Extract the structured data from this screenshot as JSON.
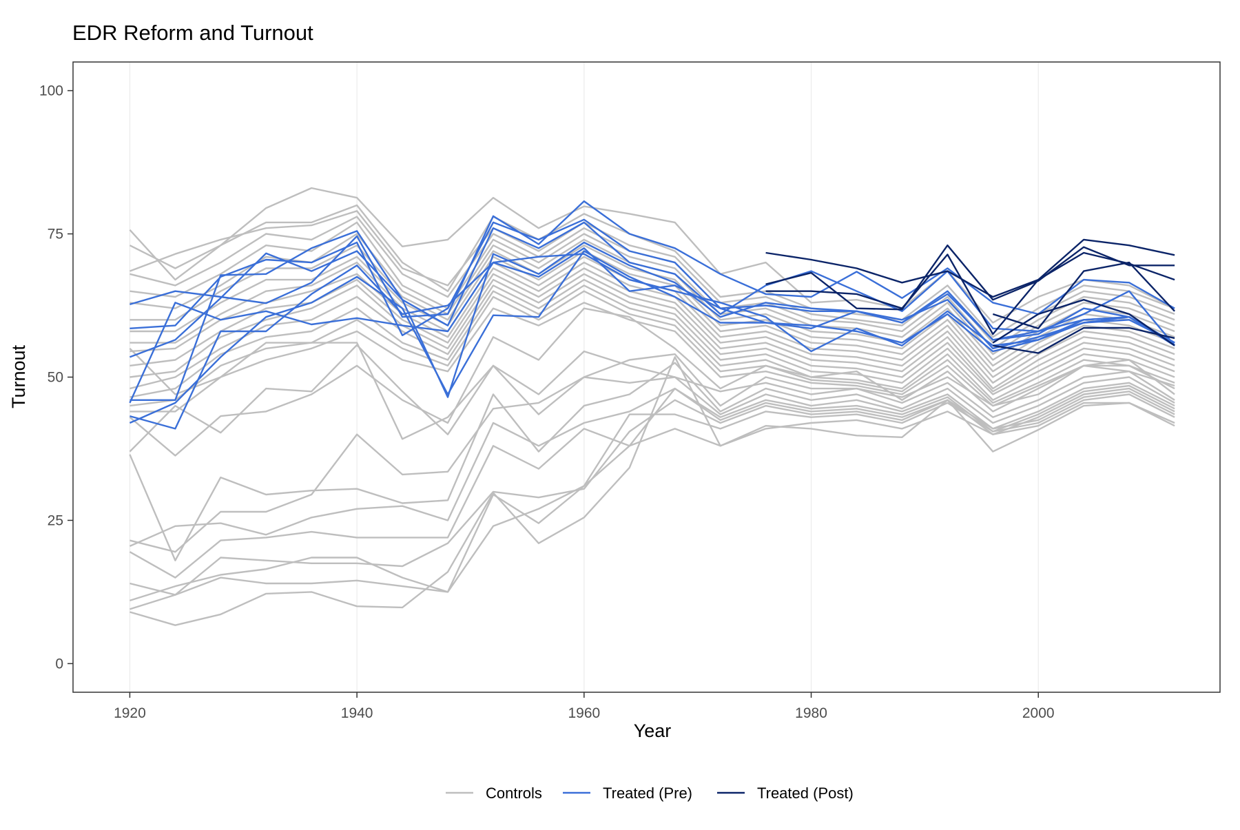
{
  "chart_data": {
    "type": "line",
    "title": "EDR Reform and Turnout",
    "xlabel": "Year",
    "ylabel": "Turnout",
    "xlim": [
      1915,
      2016
    ],
    "ylim": [
      -5,
      105
    ],
    "x_ticks": [
      1920,
      1940,
      1960,
      1980,
      2000
    ],
    "y_ticks": [
      0,
      25,
      50,
      75,
      100
    ],
    "x_tick_labels": [
      "1920",
      "1940",
      "1960",
      "1980",
      "2000"
    ],
    "y_tick_labels": [
      "0",
      "25",
      "50",
      "75",
      "100"
    ],
    "grid": true,
    "legend_position": "bottom",
    "legend": [
      {
        "label": "Controls",
        "color": "#BEBEBE"
      },
      {
        "label": "Treated (Pre)",
        "color": "#3A6FD8"
      },
      {
        "label": "Treated (Post)",
        "color": "#0B2468"
      }
    ],
    "x": [
      1920,
      1924,
      1928,
      1932,
      1936,
      1940,
      1944,
      1948,
      1952,
      1956,
      1960,
      1964,
      1968,
      1972,
      1976,
      1980,
      1984,
      1988,
      1992,
      1996,
      2000,
      2004,
      2008,
      2012
    ],
    "series": [
      {
        "group": "Controls",
        "values": [
          75.7,
          67.0,
          73.0,
          79.5,
          83.0,
          81.3,
          72.8,
          74.0,
          81.3,
          76.0,
          79.8,
          78.5,
          77.0,
          68.0,
          70.0,
          63.0,
          63.5,
          62.0,
          68.5,
          59.5,
          64.0,
          67.0,
          66.0,
          62.0
        ]
      },
      {
        "group": "Controls",
        "values": [
          73.0,
          69.0,
          73.0,
          77.0,
          77.0,
          80.0,
          70.0,
          65.0,
          78.0,
          74.0,
          78.5,
          75.0,
          72.0,
          64.0,
          65.0,
          62.0,
          61.0,
          60.0,
          66.0,
          57.0,
          62.0,
          66.0,
          65.0,
          62.0
        ]
      },
      {
        "group": "Controls",
        "values": [
          68.5,
          71.5,
          74.0,
          76.0,
          76.5,
          79.0,
          69.0,
          66.0,
          76.0,
          72.0,
          77.0,
          73.0,
          71.0,
          63.0,
          64.0,
          61.0,
          60.0,
          59.0,
          65.0,
          56.0,
          61.0,
          65.0,
          64.0,
          61.0
        ]
      },
      {
        "group": "Controls",
        "values": [
          68.0,
          66.0,
          70.0,
          75.0,
          74.0,
          78.0,
          68.0,
          64.0,
          75.0,
          71.0,
          76.0,
          72.0,
          70.0,
          62.0,
          63.0,
          60.0,
          59.5,
          58.0,
          64.0,
          55.0,
          60.0,
          64.0,
          63.0,
          60.0
        ]
      },
      {
        "group": "Controls",
        "values": [
          65.0,
          64.0,
          68.0,
          73.0,
          72.0,
          77.0,
          66.0,
          62.0,
          74.0,
          70.0,
          75.0,
          71.0,
          69.0,
          61.0,
          62.0,
          59.0,
          58.5,
          57.0,
          63.0,
          54.0,
          59.0,
          63.0,
          62.0,
          59.0
        ]
      },
      {
        "group": "Controls",
        "values": [
          63.0,
          62.0,
          66.0,
          71.0,
          70.0,
          75.0,
          65.0,
          61.0,
          73.0,
          69.0,
          74.0,
          70.0,
          68.0,
          60.0,
          61.0,
          58.0,
          57.5,
          56.0,
          62.0,
          53.0,
          58.0,
          62.0,
          61.0,
          58.0
        ]
      },
      {
        "group": "Controls",
        "values": [
          60.0,
          60.0,
          65.0,
          69.0,
          69.0,
          73.0,
          64.0,
          60.0,
          72.0,
          68.0,
          73.0,
          69.0,
          67.0,
          59.0,
          60.0,
          57.0,
          56.5,
          55.0,
          61.0,
          52.0,
          57.0,
          61.0,
          60.0,
          57.0
        ]
      },
      {
        "group": "Controls",
        "values": [
          58.0,
          58.0,
          63.0,
          67.0,
          67.0,
          71.0,
          63.0,
          59.0,
          71.0,
          67.0,
          72.0,
          68.0,
          66.0,
          58.0,
          59.0,
          56.0,
          55.5,
          54.0,
          60.0,
          51.0,
          56.0,
          60.0,
          59.0,
          56.0
        ]
      },
      {
        "group": "Controls",
        "values": [
          56.0,
          56.0,
          61.0,
          65.0,
          66.0,
          70.0,
          62.0,
          58.0,
          70.0,
          66.0,
          71.0,
          67.0,
          65.0,
          57.0,
          58.0,
          55.0,
          54.5,
          53.0,
          59.0,
          50.0,
          55.0,
          59.0,
          58.0,
          55.0
        ]
      },
      {
        "group": "Controls",
        "values": [
          54.5,
          55.0,
          60.0,
          63.0,
          65.0,
          68.0,
          61.0,
          57.0,
          69.0,
          65.0,
          70.0,
          66.0,
          64.0,
          56.0,
          57.0,
          54.0,
          53.5,
          52.0,
          58.0,
          49.0,
          54.0,
          58.0,
          57.0,
          54.0
        ]
      },
      {
        "group": "Controls",
        "values": [
          52.0,
          53.0,
          58.0,
          62.0,
          63.0,
          67.0,
          60.0,
          56.0,
          68.0,
          64.0,
          69.0,
          65.0,
          63.0,
          55.0,
          56.0,
          53.0,
          52.5,
          51.0,
          57.0,
          48.0,
          53.0,
          57.0,
          56.0,
          53.0
        ]
      },
      {
        "group": "Controls",
        "values": [
          50.0,
          51.0,
          57.0,
          60.0,
          62.0,
          66.0,
          59.0,
          55.0,
          67.0,
          63.0,
          68.0,
          64.0,
          62.0,
          54.0,
          55.0,
          52.0,
          51.5,
          50.0,
          56.0,
          47.5,
          52.0,
          56.0,
          55.0,
          52.0
        ]
      },
      {
        "group": "Controls",
        "values": [
          48.0,
          50.0,
          55.0,
          59.0,
          60.0,
          64.0,
          58.0,
          54.0,
          66.0,
          62.0,
          67.0,
          63.0,
          61.0,
          53.0,
          54.0,
          51.0,
          50.5,
          49.0,
          55.0,
          47.0,
          51.0,
          55.0,
          54.0,
          51.0
        ]
      },
      {
        "group": "Controls",
        "values": [
          46.5,
          48.0,
          54.0,
          57.0,
          58.0,
          62.0,
          56.0,
          53.0,
          65.0,
          61.0,
          66.0,
          62.0,
          60.0,
          52.0,
          53.0,
          50.0,
          49.5,
          48.0,
          54.0,
          46.0,
          50.0,
          54.0,
          53.0,
          50.0
        ]
      },
      {
        "group": "Controls",
        "values": [
          45.0,
          46.0,
          52.0,
          55.0,
          56.0,
          60.0,
          55.0,
          52.0,
          64.0,
          60.0,
          65.0,
          61.0,
          59.0,
          51.0,
          52.0,
          49.5,
          49.0,
          47.5,
          53.0,
          45.5,
          49.0,
          53.0,
          52.0,
          49.0
        ]
      },
      {
        "group": "Controls",
        "values": [
          44.0,
          44.0,
          50.0,
          53.0,
          55.0,
          58.0,
          53.0,
          51.0,
          62.0,
          59.0,
          63.0,
          60.0,
          58.0,
          50.0,
          51.0,
          49.0,
          48.5,
          47.0,
          52.0,
          45.0,
          48.5,
          52.0,
          51.0,
          48.5
        ]
      },
      {
        "group": "Controls",
        "values": [
          43.0,
          36.3,
          43.2,
          44.0,
          47.0,
          52.0,
          46.0,
          42.0,
          57.0,
          53.0,
          62.0,
          60.5,
          55.0,
          48.0,
          52.0,
          50.0,
          51.0,
          46.0,
          51.0,
          44.0,
          48.0,
          52.0,
          52.0,
          48.0
        ]
      },
      {
        "group": "Controls",
        "values": [
          37.0,
          45.0,
          40.3,
          48.0,
          47.5,
          55.6,
          47.5,
          40.0,
          52.0,
          47.0,
          54.5,
          52.0,
          50.0,
          47.5,
          49.0,
          47.0,
          48.0,
          46.5,
          50.0,
          45.0,
          47.0,
          52.0,
          53.0,
          47.0
        ]
      },
      {
        "group": "Controls",
        "values": [
          55.0,
          47.0,
          50.0,
          56.0,
          56.0,
          56.0,
          39.2,
          43.0,
          52.0,
          43.5,
          50.0,
          53.0,
          54.0,
          45.0,
          50.0,
          48.0,
          48.0,
          45.5,
          49.0,
          43.0,
          46.0,
          50.0,
          51.0,
          46.0
        ]
      },
      {
        "group": "Controls",
        "values": [
          36.5,
          18.0,
          32.5,
          29.5,
          30.2,
          30.5,
          28.0,
          28.5,
          47.0,
          37.0,
          45.0,
          47.0,
          52.5,
          44.0,
          48.0,
          46.0,
          47.0,
          44.5,
          48.0,
          42.0,
          45.0,
          49.0,
          50.0,
          45.5
        ]
      },
      {
        "group": "Controls",
        "values": [
          21.5,
          19.5,
          26.5,
          26.5,
          29.5,
          40.0,
          33.0,
          33.5,
          44.5,
          45.5,
          50.0,
          49.0,
          50.0,
          43.5,
          47.0,
          45.0,
          46.0,
          44.0,
          47.0,
          41.0,
          44.0,
          48.0,
          49.0,
          45.0
        ]
      },
      {
        "group": "Controls",
        "values": [
          20.5,
          24.0,
          24.5,
          22.5,
          25.5,
          27.0,
          27.5,
          25.0,
          42.0,
          38.0,
          42.0,
          44.0,
          48.0,
          43.0,
          46.0,
          44.5,
          45.0,
          43.5,
          46.5,
          40.5,
          43.5,
          47.5,
          48.5,
          44.5
        ]
      },
      {
        "group": "Controls",
        "values": [
          19.5,
          15.0,
          21.5,
          22.0,
          23.0,
          22.0,
          22.0,
          22.0,
          38.0,
          34.0,
          41.0,
          38.0,
          48.0,
          42.5,
          45.5,
          44.0,
          44.5,
          43.0,
          46.0,
          40.0,
          43.0,
          47.0,
          48.0,
          44.0
        ]
      },
      {
        "group": "Controls",
        "values": [
          14.0,
          12.0,
          18.5,
          18.0,
          17.5,
          17.5,
          17.0,
          21.0,
          30.0,
          29.0,
          30.5,
          40.5,
          46.0,
          42.0,
          45.0,
          43.5,
          44.0,
          42.5,
          46.0,
          41.0,
          42.5,
          46.5,
          47.5,
          43.5
        ]
      },
      {
        "group": "Controls",
        "values": [
          11.0,
          13.5,
          15.5,
          16.5,
          18.5,
          18.5,
          15.0,
          12.5,
          24.0,
          27.0,
          31.0,
          43.5,
          43.5,
          41.0,
          44.0,
          43.0,
          43.5,
          42.0,
          45.5,
          40.5,
          42.0,
          46.0,
          47.0,
          43.0
        ]
      },
      {
        "group": "Controls",
        "values": [
          9.5,
          12.0,
          15.0,
          14.0,
          14.0,
          14.5,
          13.5,
          12.5,
          29.5,
          24.5,
          31.0,
          38.0,
          41.0,
          38.0,
          41.0,
          42.0,
          42.5,
          41.0,
          44.0,
          40.0,
          41.5,
          45.5,
          45.5,
          42.0
        ]
      },
      {
        "group": "Controls",
        "values": [
          9.0,
          6.7,
          8.6,
          12.2,
          12.5,
          10.0,
          9.8,
          16.0,
          29.8,
          21.0,
          25.5,
          34.2,
          53.5,
          38.0,
          41.5,
          41.0,
          39.8,
          39.5,
          46.0,
          37.0,
          40.8,
          45.0,
          45.5,
          41.5
        ]
      },
      {
        "group": "Treated (Pre)",
        "values": [
          62.7,
          65.0,
          64.0,
          62.9,
          66.5,
          74.6,
          60.5,
          61.0,
          78.1,
          73.2,
          80.7,
          75.0,
          72.5,
          68.0,
          64.5,
          64.0,
          68.4,
          63.8,
          69.0,
          63.0,
          61.0,
          67.0,
          66.5,
          62.0
        ]
      },
      {
        "group": "Treated (Pre)",
        "values": [
          58.5,
          59.0,
          67.5,
          70.5,
          70.0,
          73.5,
          57.3,
          62.0,
          77.0,
          74.0,
          77.5,
          72.0,
          70.0,
          62.0,
          59.5,
          58.5,
          61.5,
          59.5,
          65.0,
          56.5,
          57.5,
          62.0,
          60.5,
          56.0
        ]
      },
      {
        "group": "Treated (Pre)",
        "values": [
          53.5,
          56.5,
          63.8,
          71.6,
          68.5,
          72.0,
          63.5,
          59.0,
          76.0,
          72.5,
          77.0,
          70.0,
          68.0,
          61.0,
          66.0,
          68.5,
          65.0,
          61.5,
          68.5,
          58.5,
          58.0,
          60.0,
          60.5,
          55.5
        ]
      },
      {
        "group": "Treated (Pre)",
        "values": [
          46.0,
          46.0,
          67.8,
          68.0,
          72.5,
          75.5,
          63.5,
          46.5,
          71.5,
          68.0,
          73.5,
          69.5,
          66.5,
          60.5,
          63.0,
          62.0,
          61.5,
          60.0,
          63.5,
          55.0,
          57.0,
          59.5,
          60.0,
          56.0
        ]
      },
      {
        "group": "Treated (Pre)",
        "values": [
          45.5,
          63.0,
          60.0,
          61.5,
          59.2,
          60.3,
          59.0,
          58.0,
          70.0,
          67.5,
          72.5,
          65.0,
          66.0,
          62.0,
          62.5,
          61.5,
          61.5,
          59.5,
          64.5,
          56.5,
          58.0,
          61.0,
          65.0,
          55.5
        ]
      },
      {
        "group": "Treated (Pre)",
        "values": [
          43.2,
          41.0,
          58.0,
          58.0,
          64.5,
          69.5,
          61.0,
          62.5,
          70.0,
          71.0,
          71.5,
          67.0,
          65.0,
          63.0,
          60.5,
          54.5,
          58.5,
          55.5,
          61.5,
          55.5,
          56.5,
          60.0,
          60.5,
          56.0
        ]
      },
      {
        "group": "Treated (Pre)",
        "values": [
          42.0,
          45.5,
          53.5,
          60.5,
          63.0,
          67.5,
          62.0,
          47.0,
          60.8,
          60.5,
          72.0,
          67.5,
          64.0,
          59.5,
          59.5,
          59.0,
          58.0,
          56.0,
          61.0,
          54.5,
          56.5,
          59.5,
          60.5,
          56.0
        ]
      },
      {
        "group": "Treated (Post)",
        "values": [
          null,
          null,
          null,
          null,
          null,
          null,
          null,
          null,
          null,
          null,
          null,
          null,
          null,
          null,
          71.7,
          70.5,
          69.0,
          66.5,
          68.5,
          64.0,
          67.0,
          74.0,
          73.0,
          71.3
        ]
      },
      {
        "group": "Treated (Post)",
        "values": [
          null,
          null,
          null,
          null,
          null,
          null,
          null,
          null,
          null,
          null,
          null,
          null,
          null,
          null,
          66.2,
          68.2,
          62.0,
          61.8,
          73.0,
          63.5,
          66.8,
          72.7,
          69.5,
          69.5
        ]
      },
      {
        "group": "Treated (Post)",
        "values": [
          null,
          null,
          null,
          null,
          null,
          null,
          null,
          null,
          null,
          null,
          null,
          null,
          null,
          null,
          65.0,
          65.0,
          64.5,
          62.0,
          71.4,
          57.5,
          67.0,
          71.7,
          69.8,
          67.0
        ]
      },
      {
        "group": "Treated (Post)",
        "values": [
          null,
          null,
          null,
          null,
          null,
          null,
          null,
          null,
          null,
          null,
          null,
          null,
          null,
          null,
          null,
          null,
          null,
          null,
          null,
          61.0,
          58.5,
          68.5,
          70.0,
          61.5
        ]
      },
      {
        "group": "Treated (Post)",
        "values": [
          null,
          null,
          null,
          null,
          null,
          null,
          null,
          null,
          null,
          null,
          null,
          null,
          null,
          null,
          null,
          null,
          null,
          null,
          null,
          56.0,
          61.0,
          63.5,
          61.0,
          55.5
        ]
      },
      {
        "group": "Treated (Post)",
        "values": [
          null,
          null,
          null,
          null,
          null,
          null,
          null,
          null,
          null,
          null,
          null,
          null,
          null,
          null,
          null,
          null,
          null,
          null,
          null,
          55.5,
          54.2,
          58.6,
          58.6,
          56.8
        ]
      }
    ]
  }
}
